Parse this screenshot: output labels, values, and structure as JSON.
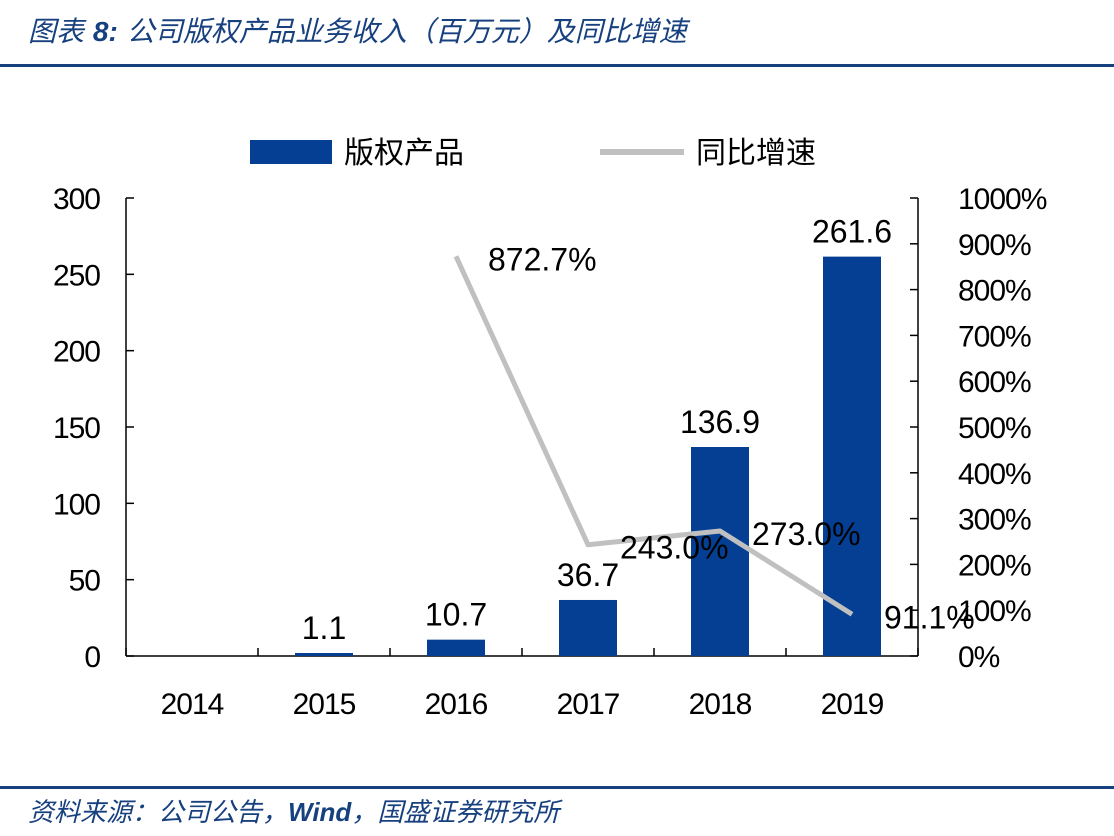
{
  "header": {
    "title_prefix": "图表",
    "figure_number": "8:",
    "title": "公司版权产品业务收入（百万元）及同比增速"
  },
  "source": {
    "label": "资料来源：公司公告，",
    "wind": "Wind",
    "rest": "，国盛证券研究所"
  },
  "colors": {
    "bar": "#043f94",
    "line": "#c0c0c0",
    "rule": "#17407f"
  },
  "chart_data": {
    "type": "bar",
    "categories": [
      "2014",
      "2015",
      "2016",
      "2017",
      "2018",
      "2019"
    ],
    "series": [
      {
        "name": "版权产品",
        "type": "bar",
        "axis": "left",
        "values": [
          0,
          1.1,
          10.7,
          36.7,
          136.9,
          261.6
        ],
        "labels": [
          "",
          "1.1",
          "10.7",
          "36.7",
          "136.9",
          "261.6"
        ]
      },
      {
        "name": "同比增速",
        "type": "line",
        "axis": "right",
        "values": [
          null,
          null,
          872.7,
          243.0,
          273.0,
          91.1
        ],
        "labels": [
          "",
          "",
          "872.7%",
          "243.0%",
          "273.0%",
          "91.1%"
        ]
      }
    ],
    "ylim_left": [
      0,
      300
    ],
    "yticks_left": [
      "0",
      "50",
      "100",
      "150",
      "200",
      "250",
      "300"
    ],
    "ylim_right": [
      0,
      1000
    ],
    "yticks_right": [
      "0%",
      "100%",
      "200%",
      "300%",
      "400%",
      "500%",
      "600%",
      "700%",
      "800%",
      "900%",
      "1000%"
    ],
    "legend_position": "top-center"
  }
}
